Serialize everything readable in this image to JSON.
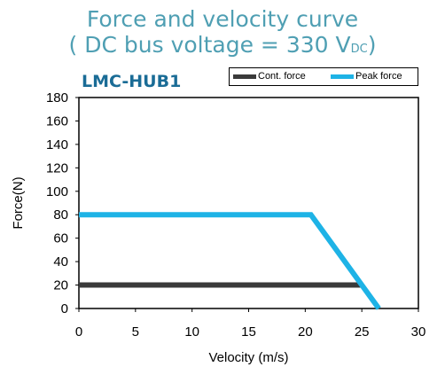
{
  "title": {
    "line1": "Force and velocity curve",
    "line2_prefix": "( DC bus voltage = 330 V",
    "line2_subscript": "DC",
    "line2_suffix": ")"
  },
  "model_label": "LMC-HUB1",
  "chart_data": {
    "type": "line",
    "xlabel": "Velocity (m/s)",
    "ylabel": "Force(N)",
    "xlim": [
      0,
      30
    ],
    "ylim": [
      0,
      180
    ],
    "xticks": [
      0,
      5,
      10,
      15,
      20,
      25,
      30
    ],
    "yticks": [
      0,
      20,
      40,
      60,
      80,
      100,
      120,
      140,
      160,
      180
    ],
    "grid": false,
    "legend_position": "top-right",
    "series": [
      {
        "name": "Cont. force",
        "color": "#3a3a3a",
        "x": [
          0,
          25
        ],
        "y": [
          20,
          20
        ]
      },
      {
        "name": "Peak force",
        "color": "#1eb3e6",
        "x": [
          0,
          20.5,
          26.5
        ],
        "y": [
          80,
          80,
          0
        ]
      }
    ]
  }
}
